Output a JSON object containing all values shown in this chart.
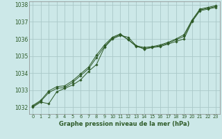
{
  "xlabel": "Graphe pression niveau de la mer (hPa)",
  "background_color": "#cce8e8",
  "grid_color": "#aac8c8",
  "line_color": "#2d5a27",
  "ylim": [
    1031.6,
    1038.2
  ],
  "xlim": [
    -0.5,
    23.5
  ],
  "yticks": [
    1032,
    1033,
    1034,
    1035,
    1036,
    1037,
    1038
  ],
  "xticks": [
    0,
    1,
    2,
    3,
    4,
    5,
    6,
    7,
    8,
    9,
    10,
    11,
    12,
    13,
    14,
    15,
    16,
    17,
    18,
    19,
    20,
    21,
    22,
    23
  ],
  "series": [
    [
      1032.0,
      1032.3,
      1032.2,
      1032.9,
      1033.1,
      1033.3,
      1033.6,
      1034.1,
      1034.5,
      1035.5,
      1036.0,
      1036.2,
      1036.1,
      1035.6,
      1035.4,
      1035.5,
      1035.55,
      1035.7,
      1035.85,
      1036.0,
      1037.0,
      1037.65,
      1037.75,
      1037.85
    ],
    [
      1032.05,
      1032.35,
      1032.85,
      1033.1,
      1033.15,
      1033.45,
      1033.85,
      1034.25,
      1034.9,
      1035.55,
      1036.05,
      1036.25,
      1035.95,
      1035.55,
      1035.45,
      1035.5,
      1035.6,
      1035.75,
      1035.95,
      1036.15,
      1037.05,
      1037.7,
      1037.8,
      1037.9
    ],
    [
      1032.1,
      1032.4,
      1032.95,
      1033.2,
      1033.25,
      1033.55,
      1033.95,
      1034.35,
      1035.05,
      1035.65,
      1036.1,
      1036.3,
      1035.95,
      1035.6,
      1035.5,
      1035.55,
      1035.65,
      1035.8,
      1036.0,
      1036.25,
      1037.1,
      1037.75,
      1037.85,
      1037.95
    ]
  ]
}
